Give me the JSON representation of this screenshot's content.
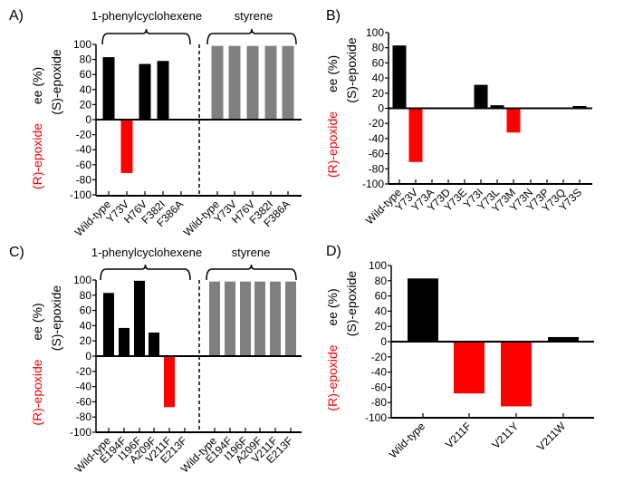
{
  "colors": {
    "positive": "#000000",
    "negative": "#ff0000",
    "styrene": "#808080",
    "axis": "#000000"
  },
  "chart_data": [
    {
      "panel": "A)",
      "type": "bar",
      "ylabel_lines": [
        "ee (%)",
        "(S)-epoxide",
        "(R)-epoxide"
      ],
      "ylim": [
        -100,
        100
      ],
      "yticks": [
        100,
        80,
        60,
        40,
        20,
        0,
        -20,
        -40,
        -60,
        -80,
        -100
      ],
      "groups": [
        {
          "name": "1-phenylcyclohexene",
          "categories": [
            "Wild-type",
            "Y73V",
            "H76V",
            "F382I",
            "F386A"
          ],
          "values": [
            83,
            -71,
            74,
            78,
            0
          ],
          "style": "signed"
        },
        {
          "name": "styrene",
          "categories": [
            "Wild-type",
            "Y73V",
            "H76V",
            "F382I",
            "F386A"
          ],
          "values": [
            98,
            98,
            98,
            98,
            98
          ],
          "style": "gray"
        }
      ]
    },
    {
      "panel": "B)",
      "type": "bar",
      "ylabel_lines": [
        "ee (%)",
        "(S)-epoxide",
        "(R)-epoxide"
      ],
      "ylim": [
        -100,
        100
      ],
      "yticks": [
        100,
        80,
        60,
        40,
        20,
        0,
        -20,
        -40,
        -60,
        -80,
        -100
      ],
      "groups": [
        {
          "name": "",
          "categories": [
            "Wild-type",
            "Y73V",
            "Y73A",
            "Y73D",
            "Y73E",
            "Y73I",
            "Y73L",
            "Y73M",
            "Y73N",
            "Y73P",
            "Y73Q",
            "Y73S"
          ],
          "values": [
            83,
            -71,
            0,
            0,
            0,
            31,
            4,
            -32,
            -1,
            0,
            0,
            3
          ],
          "style": "signed"
        }
      ]
    },
    {
      "panel": "C)",
      "type": "bar",
      "ylabel_lines": [
        "ee (%)",
        "(S)-epoxide",
        "(R)-epoxide"
      ],
      "ylim": [
        -100,
        100
      ],
      "yticks": [
        100,
        80,
        60,
        40,
        20,
        0,
        -20,
        -40,
        -60,
        -80,
        -100
      ],
      "groups": [
        {
          "name": "1-phenylcyclohexene",
          "categories": [
            "Wild-type",
            "E194F",
            "I196F",
            "A209F",
            "V211F",
            "E213F"
          ],
          "values": [
            83,
            37,
            99,
            31,
            -67,
            0
          ],
          "style": "signed"
        },
        {
          "name": "styrene",
          "categories": [
            "Wild-type",
            "E194F",
            "I196F",
            "A209F",
            "V211F",
            "E213F"
          ],
          "values": [
            98,
            98,
            98,
            98,
            98,
            98
          ],
          "style": "gray"
        }
      ]
    },
    {
      "panel": "D)",
      "type": "bar",
      "ylabel_lines": [
        "ee (%)",
        "(S)-epoxide",
        "(R)-epoxide"
      ],
      "ylim": [
        -100,
        100
      ],
      "yticks": [
        100,
        80,
        60,
        40,
        20,
        0,
        -20,
        -40,
        -60,
        -80,
        -100
      ],
      "groups": [
        {
          "name": "",
          "categories": [
            "Wild-type",
            "V211F",
            "V211Y",
            "V211W"
          ],
          "values": [
            83,
            -68,
            -85,
            6
          ],
          "style": "signed"
        }
      ]
    }
  ]
}
